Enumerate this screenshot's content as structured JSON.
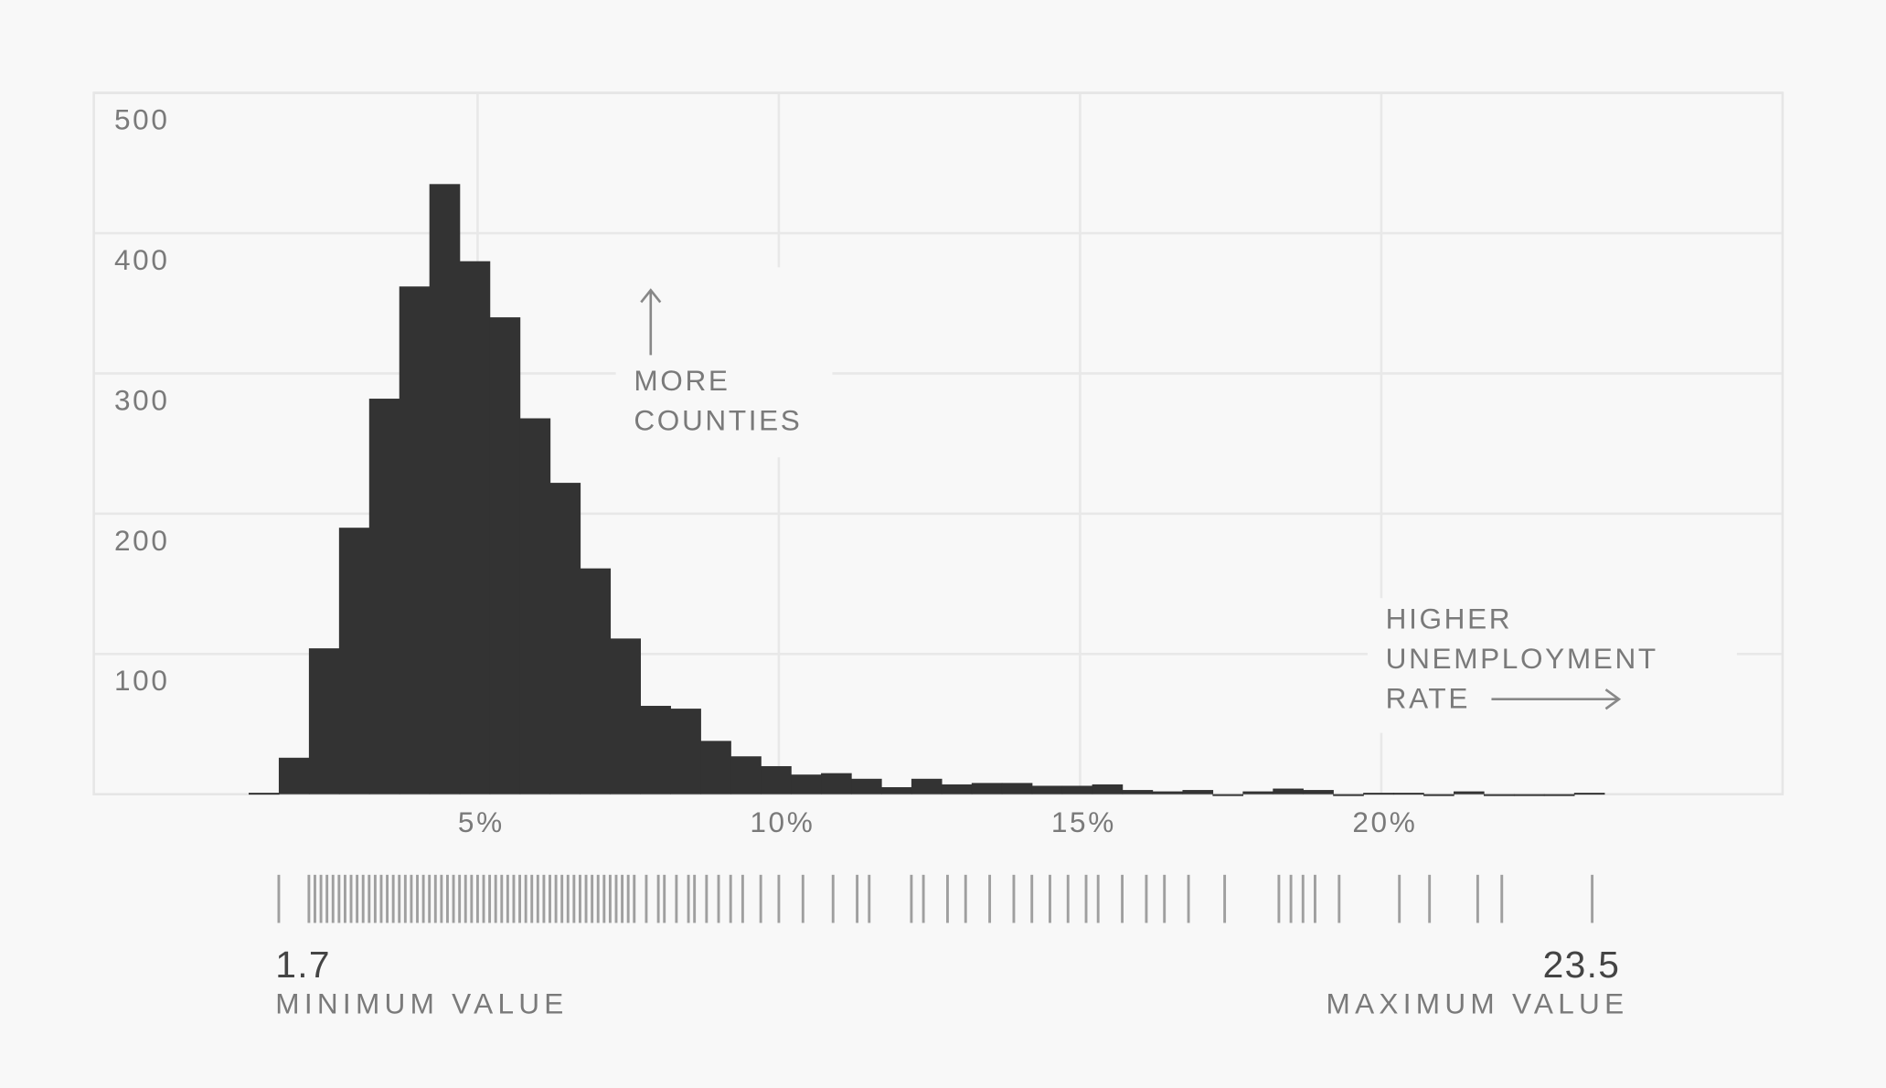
{
  "chart_data": {
    "type": "histogram",
    "bins": [
      1.2,
      1.7,
      2.2,
      2.7,
      3.2,
      3.7,
      4.2,
      4.7,
      5.2,
      5.7,
      6.2,
      6.7,
      7.2,
      7.7,
      8.2,
      8.7,
      9.2,
      9.7,
      10.2,
      10.7,
      11.2,
      11.7,
      12.2,
      12.7,
      13.2,
      13.7,
      14.2,
      14.7,
      15.2,
      15.7,
      16.2,
      16.7,
      17.2,
      17.7,
      18.2,
      18.7,
      19.2,
      19.7,
      20.2,
      20.7,
      21.2,
      21.7,
      22.2,
      22.7,
      23.2,
      23.7
    ],
    "counts": [
      1,
      26,
      104,
      190,
      282,
      362,
      435,
      380,
      340,
      268,
      222,
      161,
      111,
      63,
      61,
      38,
      27,
      20,
      14,
      15,
      11,
      5,
      11,
      7,
      8,
      8,
      6,
      6,
      7,
      3,
      2,
      3,
      0,
      2,
      4,
      3,
      0,
      1,
      1,
      0,
      2,
      0,
      0,
      0,
      1
    ],
    "color": "#333333",
    "xlim": [
      -1.37,
      26.66
    ],
    "xticks": [
      {
        "value": 5,
        "label": "5%"
      },
      {
        "value": 10,
        "label": "10%"
      },
      {
        "value": 15,
        "label": "15%"
      },
      {
        "value": 20,
        "label": "20%"
      }
    ],
    "ylim": [
      0,
      500
    ],
    "yticks": [
      100,
      200,
      300,
      400,
      500
    ],
    "grid": true,
    "annotations": [
      {
        "lines": [
          "MORE",
          "COUNTIES"
        ]
      },
      {
        "lines": [
          "HIGHER",
          "UNEMPLOYMENT",
          "RATE"
        ]
      }
    ],
    "rug": [
      1.7,
      2.2,
      2.3,
      2.4,
      2.5,
      2.6,
      2.7,
      2.8,
      2.9,
      3.0,
      3.1,
      3.2,
      3.3,
      3.4,
      3.5,
      3.6,
      3.7,
      3.8,
      3.9,
      4.0,
      4.1,
      4.2,
      4.3,
      4.4,
      4.5,
      4.6,
      4.7,
      4.8,
      4.9,
      5.0,
      5.1,
      5.2,
      5.3,
      5.4,
      5.5,
      5.6,
      5.7,
      5.8,
      5.9,
      6.0,
      6.1,
      6.2,
      6.3,
      6.4,
      6.5,
      6.6,
      6.7,
      6.8,
      6.9,
      7.0,
      7.1,
      7.2,
      7.3,
      7.4,
      7.5,
      7.6,
      7.8,
      8.0,
      8.1,
      8.3,
      8.5,
      8.6,
      8.8,
      9.0,
      9.2,
      9.4,
      9.7,
      10.0,
      10.4,
      10.9,
      11.3,
      11.5,
      12.2,
      12.4,
      12.8,
      13.1,
      13.5,
      13.9,
      14.2,
      14.5,
      14.8,
      15.1,
      15.3,
      15.7,
      16.1,
      16.4,
      16.8,
      17.4,
      18.3,
      18.5,
      18.7,
      18.9,
      19.3,
      20.3,
      20.8,
      21.6,
      22.0,
      23.5
    ],
    "summary": {
      "min": 1.7,
      "min_label": "MINIMUM VALUE",
      "max": 23.5,
      "max_label": "MAXIMUM VALUE"
    }
  }
}
